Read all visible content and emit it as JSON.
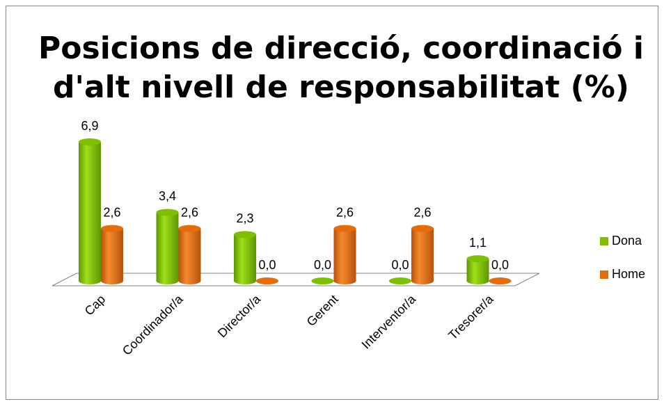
{
  "chart_data": {
    "type": "bar3d",
    "title": [
      "Posicions de direcció, coordinació i",
      "d'alt nivell de responsabilitat (%)"
    ],
    "categories": [
      "Cap",
      "Coordinador/a",
      "Director/a",
      "Gerent",
      "Interventor/a",
      "Tresorer/a"
    ],
    "series": [
      {
        "name": "Dona",
        "color": "#7cc000",
        "values": [
          6.9,
          3.4,
          2.3,
          0,
          0,
          1.1
        ],
        "value_labels": [
          "6,9",
          "3,4",
          "2,3",
          "0,0",
          "0,0",
          "1,1"
        ]
      },
      {
        "name": "Home",
        "color": "#e46c0a",
        "values": [
          2.6,
          2.6,
          0,
          2.6,
          2.6,
          0
        ],
        "value_labels": [
          "2,6",
          "2,6",
          "0,0",
          "2,6",
          "2,6",
          "0,0"
        ]
      }
    ],
    "legend": "right"
  }
}
